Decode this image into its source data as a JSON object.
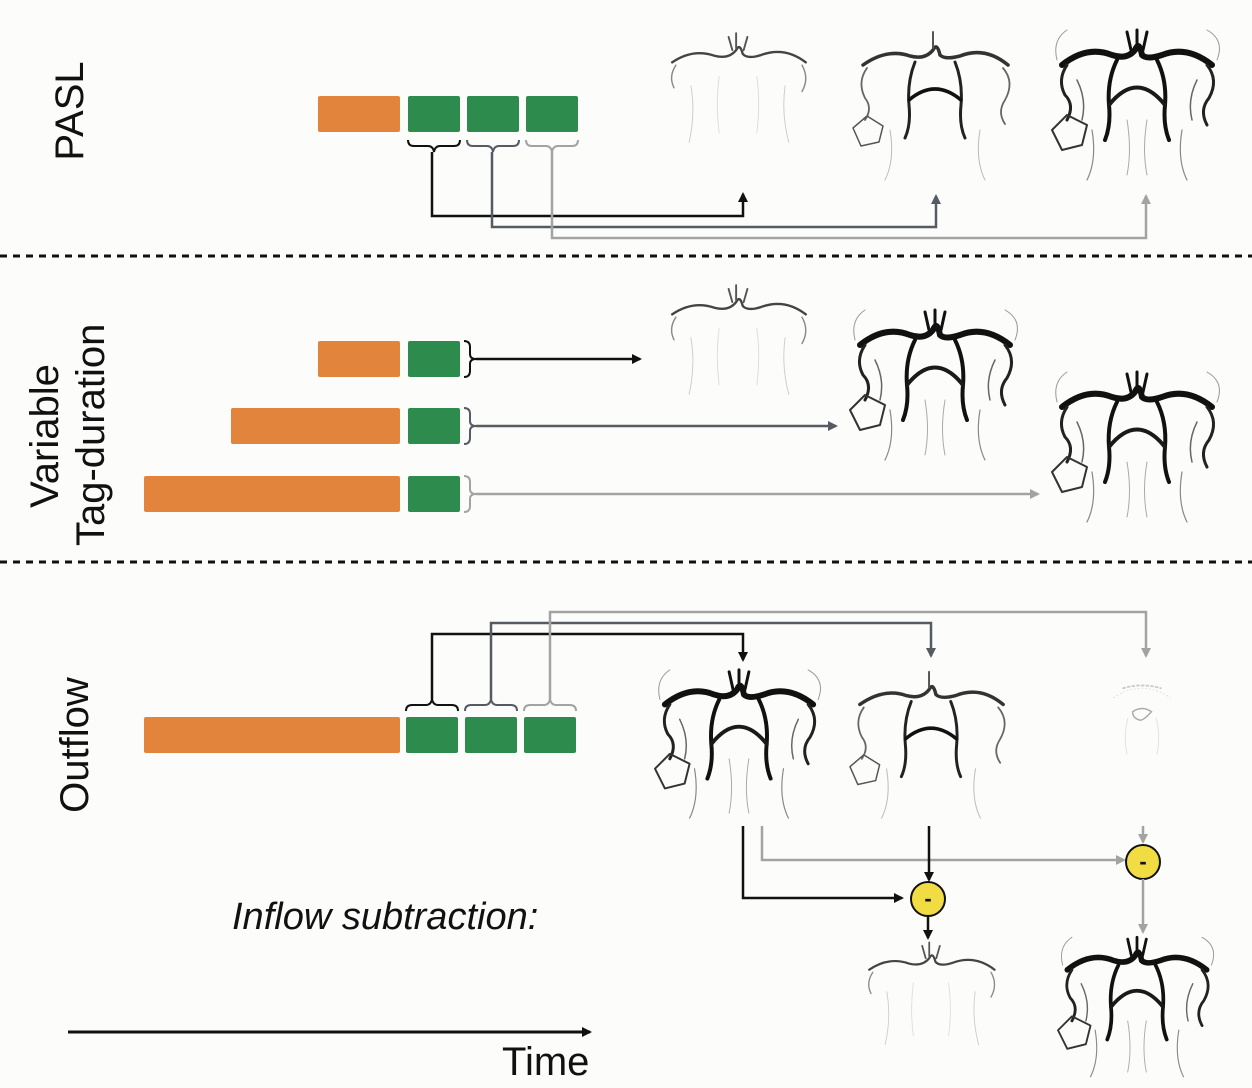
{
  "rows": {
    "pasl": {
      "label": "PASL"
    },
    "variable": {
      "label_line1": "Variable",
      "label_line2": "Tag-duration"
    },
    "outflow": {
      "label": "Outflow"
    }
  },
  "inflow_subtraction_label": "Inflow subtraction:",
  "time_axis_label": "Time",
  "minus_symbol": "-",
  "colors": {
    "tag": "#e2843c",
    "readout": "#2e8b4e",
    "arrow_dark": "#111111",
    "arrow_mid": "#555a63",
    "arrow_light": "#a3a3a3",
    "subtract_node": "#f1dc44"
  },
  "image_content": "angiogram brain vessel images"
}
